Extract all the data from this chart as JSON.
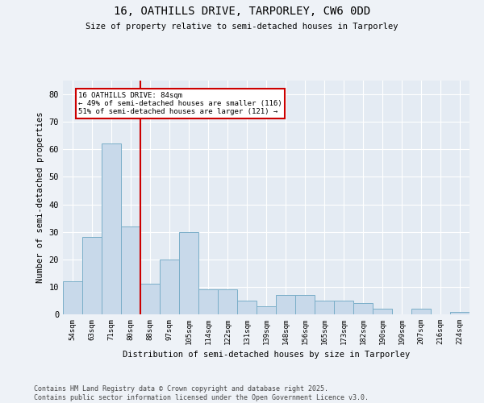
{
  "title_line1": "16, OATHILLS DRIVE, TARPORLEY, CW6 0DD",
  "title_line2": "Size of property relative to semi-detached houses in Tarporley",
  "xlabel": "Distribution of semi-detached houses by size in Tarporley",
  "ylabel": "Number of semi-detached properties",
  "categories": [
    "54sqm",
    "63sqm",
    "71sqm",
    "80sqm",
    "88sqm",
    "97sqm",
    "105sqm",
    "114sqm",
    "122sqm",
    "131sqm",
    "139sqm",
    "148sqm",
    "156sqm",
    "165sqm",
    "173sqm",
    "182sqm",
    "190sqm",
    "199sqm",
    "207sqm",
    "216sqm",
    "224sqm"
  ],
  "values": [
    12,
    28,
    62,
    32,
    11,
    20,
    30,
    9,
    9,
    5,
    3,
    7,
    7,
    5,
    5,
    4,
    2,
    0,
    2,
    0,
    1
  ],
  "bar_color": "#c8d9ea",
  "bar_edge_color": "#7aaec8",
  "vline_x": 3.5,
  "vline_color": "#cc0000",
  "annotation_title": "16 OATHILLS DRIVE: 84sqm",
  "annotation_line2": "← 49% of semi-detached houses are smaller (116)",
  "annotation_line3": "51% of semi-detached houses are larger (121) →",
  "annotation_box_color": "#cc0000",
  "ylim": [
    0,
    85
  ],
  "yticks": [
    0,
    10,
    20,
    30,
    40,
    50,
    60,
    70,
    80
  ],
  "footer_line1": "Contains HM Land Registry data © Crown copyright and database right 2025.",
  "footer_line2": "Contains public sector information licensed under the Open Government Licence v3.0.",
  "bg_color": "#eef2f7",
  "plot_bg_color": "#e4ebf3"
}
